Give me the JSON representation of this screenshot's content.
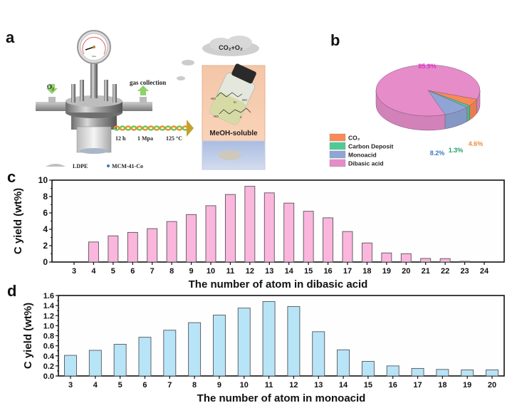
{
  "panels": {
    "a": {
      "letter": "a",
      "inlet_label": "O₂",
      "outlet_label": "gas collection",
      "gauge_unit": "Mpa",
      "conditions": [
        "12 h",
        "1 Mpa",
        "125 °C"
      ],
      "cloud_label": "CO₂+O₂",
      "product_label": "MeOH-soluble",
      "structure_labels": {
        "ho1": "HO",
        "oh1": "OH",
        "m": "m",
        "ho2": "HO",
        "n": "n",
        "o": "O"
      },
      "legend": [
        {
          "name": "LDPE"
        },
        {
          "name": "MCM-41-Co"
        }
      ]
    },
    "b": {
      "letter": "b"
    },
    "c": {
      "letter": "c"
    },
    "d": {
      "letter": "d"
    }
  },
  "chart_data": [
    {
      "id": "b",
      "type": "pie",
      "style": "3d",
      "slices": [
        {
          "name": "CO₂",
          "value": 4.6,
          "label": "4.6%",
          "color": "#f98a55",
          "label_color": "#f08a3a"
        },
        {
          "name": "Carbon Deposit",
          "value": 1.3,
          "label": "1.3%",
          "color": "#4ecb95",
          "label_color": "#22a068"
        },
        {
          "name": "Monoacid",
          "value": 8.2,
          "label": "8.2%",
          "color": "#8fa5d6",
          "label_color": "#3a78c8"
        },
        {
          "name": "Dibasic acid",
          "value": 85.9,
          "label": "85.9%",
          "color": "#e58cc9",
          "label_color": "#e036c8"
        }
      ],
      "legend": [
        "CO₂",
        "Carbon Deposit",
        "Monoacid",
        "Dibasic acid"
      ],
      "legend_position": "bottom-left"
    },
    {
      "id": "c",
      "type": "bar",
      "categories": [
        "3",
        "4",
        "5",
        "6",
        "7",
        "8",
        "9",
        "10",
        "11",
        "12",
        "13",
        "14",
        "15",
        "16",
        "17",
        "18",
        "19",
        "20",
        "21",
        "22",
        "23",
        "24"
      ],
      "values": [
        0,
        2.45,
        3.2,
        3.62,
        4.08,
        4.95,
        5.8,
        6.88,
        8.25,
        9.25,
        8.45,
        7.2,
        6.2,
        5.4,
        3.73,
        2.33,
        1.11,
        1.02,
        0.44,
        0.42,
        0.09,
        0
      ],
      "title": "",
      "xlabel": "The number of atom in dibasic acid",
      "ylabel": "C yield (wt%)",
      "ylim": [
        0,
        10
      ],
      "yticks": [
        "0",
        "2",
        "4",
        "6",
        "8",
        "10"
      ],
      "bar_color": "#fbb6dd",
      "grid": false
    },
    {
      "id": "d",
      "type": "bar",
      "categories": [
        "3",
        "4",
        "5",
        "6",
        "7",
        "8",
        "9",
        "10",
        "11",
        "12",
        "13",
        "14",
        "15",
        "16",
        "17",
        "18",
        "19",
        "20"
      ],
      "values": [
        0.41,
        0.51,
        0.63,
        0.77,
        0.91,
        1.06,
        1.21,
        1.35,
        1.48,
        1.38,
        0.88,
        0.52,
        0.29,
        0.2,
        0.15,
        0.13,
        0.12,
        0.12
      ],
      "title": "",
      "xlabel": "The number of atom in monoacid",
      "ylabel": "C yield (wt%)",
      "ylim": [
        0,
        1.6
      ],
      "yticks": [
        "0.0",
        "0.2",
        "0.4",
        "0.6",
        "0.8",
        "1.0",
        "1.2",
        "1.4",
        "1.6"
      ],
      "bar_color": "#b8e4f8",
      "grid": false
    }
  ]
}
